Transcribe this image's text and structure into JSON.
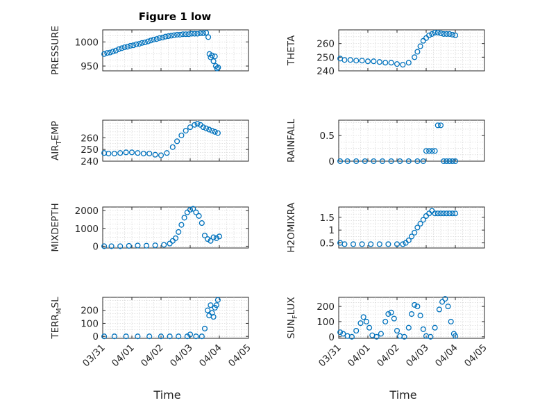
{
  "figure_title": "Figure 1 low",
  "colors": {
    "series": "#0072BD",
    "axis": "#262626",
    "grid": "#cfcfcf"
  },
  "chart_data": [
    {
      "type": "scatter",
      "ylabel": "PRESSURE",
      "ylim": [
        940,
        1025
      ],
      "yticks": [
        950,
        1000
      ],
      "ytick_labels": [
        "950",
        "1000"
      ],
      "xlim": [
        0,
        5
      ],
      "grid": "on",
      "points": [
        [
          0.05,
          975
        ],
        [
          0.15,
          977
        ],
        [
          0.25,
          978
        ],
        [
          0.35,
          980
        ],
        [
          0.45,
          982
        ],
        [
          0.55,
          985
        ],
        [
          0.65,
          987
        ],
        [
          0.75,
          989
        ],
        [
          0.85,
          990
        ],
        [
          0.95,
          992
        ],
        [
          1.05,
          993
        ],
        [
          1.15,
          995
        ],
        [
          1.25,
          996
        ],
        [
          1.35,
          998
        ],
        [
          1.45,
          999
        ],
        [
          1.55,
          1001
        ],
        [
          1.65,
          1003
        ],
        [
          1.75,
          1005
        ],
        [
          1.85,
          1006
        ],
        [
          1.95,
          1008
        ],
        [
          2.05,
          1009
        ],
        [
          2.15,
          1011
        ],
        [
          2.25,
          1012
        ],
        [
          2.35,
          1013
        ],
        [
          2.45,
          1014
        ],
        [
          2.55,
          1015
        ],
        [
          2.65,
          1015
        ],
        [
          2.75,
          1016
        ],
        [
          2.85,
          1016
        ],
        [
          2.95,
          1016
        ],
        [
          3.05,
          1017
        ],
        [
          3.15,
          1017
        ],
        [
          3.25,
          1017
        ],
        [
          3.35,
          1018
        ],
        [
          3.45,
          1018
        ],
        [
          3.55,
          1019
        ],
        [
          3.62,
          1010
        ],
        [
          3.66,
          975
        ],
        [
          3.7,
          968
        ],
        [
          3.75,
          972
        ],
        [
          3.8,
          960
        ],
        [
          3.85,
          970
        ],
        [
          3.88,
          950
        ],
        [
          3.92,
          945
        ],
        [
          3.96,
          947
        ]
      ]
    },
    {
      "type": "scatter",
      "ylabel": "THETA",
      "ylim": [
        240,
        270
      ],
      "yticks": [
        240,
        250,
        260
      ],
      "ytick_labels": [
        "240",
        "250",
        "260"
      ],
      "xlim": [
        0,
        5
      ],
      "grid": "on",
      "points": [
        [
          0.05,
          249
        ],
        [
          0.2,
          248
        ],
        [
          0.4,
          248
        ],
        [
          0.6,
          247.5
        ],
        [
          0.8,
          247.5
        ],
        [
          1.0,
          247
        ],
        [
          1.2,
          247
        ],
        [
          1.4,
          246.5
        ],
        [
          1.6,
          246
        ],
        [
          1.8,
          246
        ],
        [
          2.0,
          245
        ],
        [
          2.2,
          244.5
        ],
        [
          2.4,
          246
        ],
        [
          2.6,
          250
        ],
        [
          2.7,
          254
        ],
        [
          2.8,
          258
        ],
        [
          2.9,
          262
        ],
        [
          3.0,
          264
        ],
        [
          3.1,
          266
        ],
        [
          3.2,
          267
        ],
        [
          3.3,
          268
        ],
        [
          3.4,
          268
        ],
        [
          3.5,
          267.5
        ],
        [
          3.6,
          267
        ],
        [
          3.7,
          267
        ],
        [
          3.8,
          267
        ],
        [
          3.9,
          266.5
        ],
        [
          4.0,
          266
        ]
      ]
    },
    {
      "type": "scatter",
      "ylabel": "AIR_TEMP",
      "ylim": [
        240,
        275
      ],
      "yticks": [
        240,
        250,
        260
      ],
      "ytick_labels": [
        "240",
        "250",
        "260"
      ],
      "xlim": [
        0,
        5
      ],
      "grid": "on",
      "points": [
        [
          0.05,
          247
        ],
        [
          0.2,
          246.5
        ],
        [
          0.4,
          246.5
        ],
        [
          0.6,
          247
        ],
        [
          0.8,
          247.5
        ],
        [
          1.0,
          247.5
        ],
        [
          1.2,
          247
        ],
        [
          1.4,
          246.5
        ],
        [
          1.6,
          246.5
        ],
        [
          1.8,
          245.5
        ],
        [
          2.0,
          245
        ],
        [
          2.2,
          247
        ],
        [
          2.4,
          252
        ],
        [
          2.55,
          257
        ],
        [
          2.7,
          262
        ],
        [
          2.85,
          266
        ],
        [
          3.0,
          269
        ],
        [
          3.15,
          271
        ],
        [
          3.25,
          272
        ],
        [
          3.35,
          271
        ],
        [
          3.45,
          269
        ],
        [
          3.55,
          268
        ],
        [
          3.65,
          267
        ],
        [
          3.75,
          266
        ],
        [
          3.85,
          265
        ],
        [
          3.95,
          264
        ]
      ]
    },
    {
      "type": "scatter",
      "ylabel": "RAINFALL",
      "ylim": [
        0,
        0.8
      ],
      "yticks": [
        0,
        0.5
      ],
      "ytick_labels": [
        "0",
        "0.5"
      ],
      "xlim": [
        0,
        5
      ],
      "grid": "on",
      "points": [
        [
          0.05,
          0
        ],
        [
          0.3,
          0
        ],
        [
          0.6,
          0
        ],
        [
          0.9,
          0
        ],
        [
          1.2,
          0
        ],
        [
          1.5,
          0
        ],
        [
          1.8,
          0
        ],
        [
          2.1,
          0
        ],
        [
          2.4,
          0
        ],
        [
          2.7,
          0
        ],
        [
          2.9,
          0
        ],
        [
          3.0,
          0.2
        ],
        [
          3.1,
          0.2
        ],
        [
          3.2,
          0.2
        ],
        [
          3.3,
          0.2
        ],
        [
          3.4,
          0.7
        ],
        [
          3.5,
          0.7
        ],
        [
          3.6,
          0
        ],
        [
          3.7,
          0
        ],
        [
          3.8,
          0
        ],
        [
          3.9,
          0
        ],
        [
          4.0,
          0
        ]
      ]
    },
    {
      "type": "scatter",
      "ylabel": "MIXDEPTH",
      "ylim": [
        -100,
        2200
      ],
      "yticks": [
        0,
        1000,
        2000
      ],
      "ytick_labels": [
        "0",
        "1000",
        "2000"
      ],
      "xlim": [
        0,
        5
      ],
      "grid": "on",
      "points": [
        [
          0.05,
          0
        ],
        [
          0.3,
          0
        ],
        [
          0.6,
          0
        ],
        [
          0.9,
          20
        ],
        [
          1.2,
          40
        ],
        [
          1.5,
          30
        ],
        [
          1.8,
          50
        ],
        [
          2.1,
          80
        ],
        [
          2.3,
          150
        ],
        [
          2.4,
          300
        ],
        [
          2.5,
          450
        ],
        [
          2.6,
          800
        ],
        [
          2.7,
          1200
        ],
        [
          2.8,
          1600
        ],
        [
          2.9,
          1900
        ],
        [
          3.0,
          2050
        ],
        [
          3.1,
          2100
        ],
        [
          3.2,
          1900
        ],
        [
          3.3,
          1700
        ],
        [
          3.4,
          1300
        ],
        [
          3.5,
          600
        ],
        [
          3.6,
          400
        ],
        [
          3.7,
          300
        ],
        [
          3.8,
          500
        ],
        [
          3.9,
          450
        ],
        [
          4.0,
          550
        ]
      ]
    },
    {
      "type": "scatter",
      "ylabel": "H2OMIXRA",
      "ylim": [
        0.3,
        1.9
      ],
      "yticks": [
        0.5,
        1,
        1.5
      ],
      "ytick_labels": [
        "0.5",
        "1",
        "1.5"
      ],
      "xlim": [
        0,
        5
      ],
      "grid": "on",
      "points": [
        [
          0.05,
          0.5
        ],
        [
          0.2,
          0.45
        ],
        [
          0.5,
          0.45
        ],
        [
          0.8,
          0.45
        ],
        [
          1.1,
          0.45
        ],
        [
          1.4,
          0.45
        ],
        [
          1.7,
          0.45
        ],
        [
          2.0,
          0.45
        ],
        [
          2.2,
          0.45
        ],
        [
          2.3,
          0.5
        ],
        [
          2.4,
          0.6
        ],
        [
          2.5,
          0.75
        ],
        [
          2.6,
          0.9
        ],
        [
          2.7,
          1.1
        ],
        [
          2.8,
          1.25
        ],
        [
          2.9,
          1.4
        ],
        [
          3.0,
          1.55
        ],
        [
          3.1,
          1.65
        ],
        [
          3.2,
          1.75
        ],
        [
          3.3,
          1.65
        ],
        [
          3.4,
          1.65
        ],
        [
          3.5,
          1.65
        ],
        [
          3.6,
          1.65
        ],
        [
          3.7,
          1.65
        ],
        [
          3.8,
          1.65
        ],
        [
          3.9,
          1.65
        ],
        [
          4.0,
          1.65
        ]
      ]
    },
    {
      "type": "scatter",
      "ylabel": "TERR_MSL",
      "ylim": [
        -15,
        300
      ],
      "yticks": [
        0,
        100,
        200
      ],
      "ytick_labels": [
        "0",
        "100",
        "200"
      ],
      "xlim": [
        0,
        5
      ],
      "grid": "on",
      "points": [
        [
          0.05,
          0
        ],
        [
          0.4,
          0
        ],
        [
          0.8,
          0
        ],
        [
          1.2,
          0
        ],
        [
          1.6,
          0
        ],
        [
          2.0,
          0
        ],
        [
          2.3,
          0
        ],
        [
          2.6,
          0
        ],
        [
          2.9,
          0
        ],
        [
          3.0,
          15
        ],
        [
          3.2,
          0
        ],
        [
          3.4,
          0
        ],
        [
          3.5,
          60
        ],
        [
          3.6,
          200
        ],
        [
          3.65,
          160
        ],
        [
          3.7,
          240
        ],
        [
          3.75,
          180
        ],
        [
          3.8,
          150
        ],
        [
          3.85,
          220
        ],
        [
          3.9,
          240
        ],
        [
          3.95,
          280
        ]
      ]
    },
    {
      "type": "scatter",
      "ylabel": "SUN_FLUX",
      "ylim": [
        -10,
        260
      ],
      "yticks": [
        0,
        100,
        200
      ],
      "ytick_labels": [
        "0",
        "100",
        "200"
      ],
      "xlim": [
        0,
        5
      ],
      "grid": "on",
      "points": [
        [
          0.05,
          30
        ],
        [
          0.15,
          20
        ],
        [
          0.3,
          5
        ],
        [
          0.45,
          0
        ],
        [
          0.6,
          40
        ],
        [
          0.75,
          90
        ],
        [
          0.85,
          130
        ],
        [
          0.95,
          100
        ],
        [
          1.05,
          60
        ],
        [
          1.15,
          10
        ],
        [
          1.3,
          0
        ],
        [
          1.45,
          20
        ],
        [
          1.6,
          100
        ],
        [
          1.7,
          150
        ],
        [
          1.8,
          160
        ],
        [
          1.9,
          120
        ],
        [
          2.0,
          40
        ],
        [
          2.1,
          5
        ],
        [
          2.25,
          0
        ],
        [
          2.4,
          60
        ],
        [
          2.5,
          150
        ],
        [
          2.6,
          210
        ],
        [
          2.7,
          200
        ],
        [
          2.8,
          140
        ],
        [
          2.9,
          50
        ],
        [
          3.0,
          5
        ],
        [
          3.15,
          0
        ],
        [
          3.3,
          60
        ],
        [
          3.45,
          180
        ],
        [
          3.55,
          230
        ],
        [
          3.65,
          250
        ],
        [
          3.75,
          200
        ],
        [
          3.85,
          100
        ],
        [
          3.95,
          20
        ],
        [
          4.0,
          5
        ]
      ]
    }
  ],
  "x_axis": {
    "tick_labels": [
      "03/31",
      "04/01",
      "04/02",
      "04/03",
      "04/04",
      "04/05"
    ],
    "xlabel": "Time"
  }
}
